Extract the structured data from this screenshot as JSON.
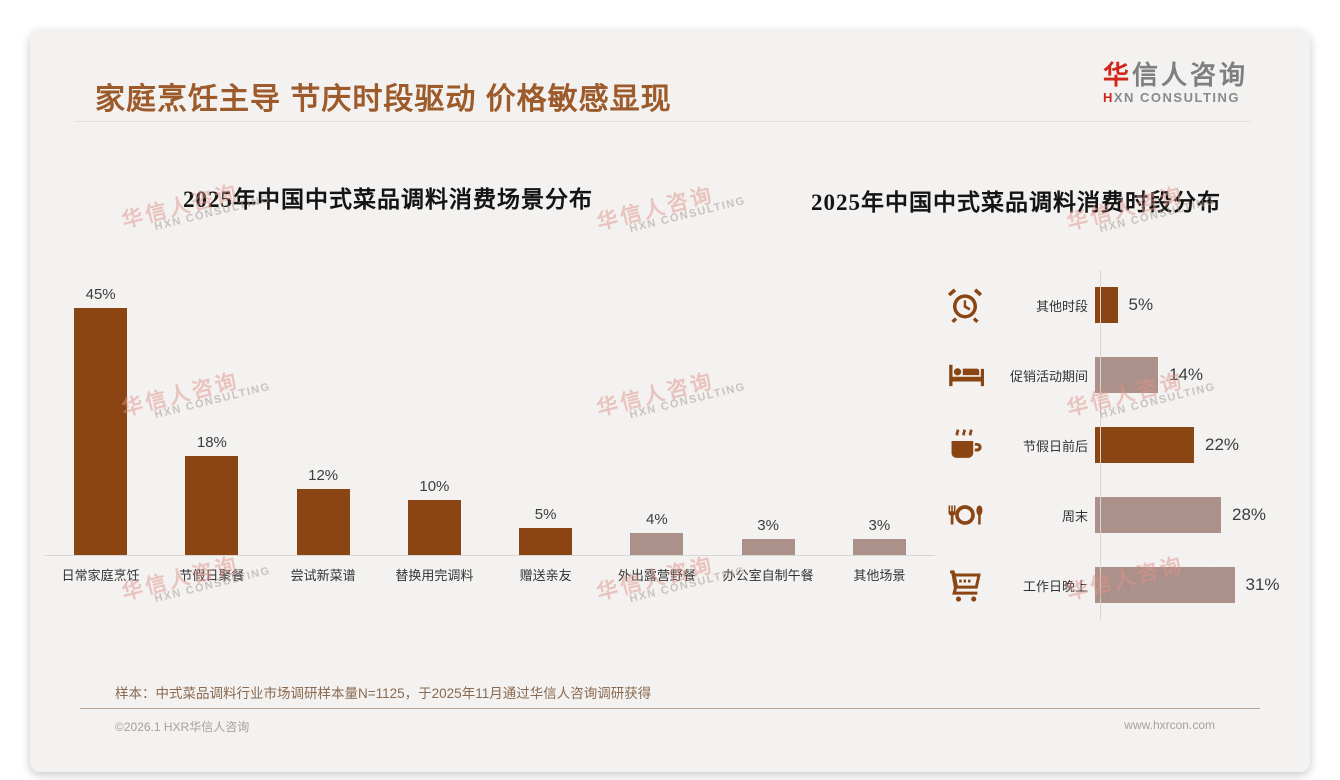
{
  "page_title": "家庭烹饪主导 节庆时段驱动 价格敏感显现",
  "logo": {
    "zh_accent": "华",
    "zh_rest": "信人咨询",
    "en_accent": "H",
    "en_rest": "XN CONSULTING"
  },
  "watermark": {
    "zh": "华信人咨询",
    "en": "HXN CONSULTING"
  },
  "colors": {
    "dark_bar": "#8A4513",
    "light_bar": "#AB9189",
    "title_brown": "#9D5B2C",
    "logo_red": "#D2261B",
    "icon_brown": "#8A4513"
  },
  "chart_data": [
    {
      "type": "bar",
      "title": "2025年中国中式菜品调料消费场景分布",
      "categories": [
        "日常家庭烹饪",
        "节假日聚餐",
        "尝试新菜谱",
        "替换用完调料",
        "赠送亲友",
        "外出露营野餐",
        "办公室自制午餐",
        "其他场景"
      ],
      "values": [
        45,
        18,
        12,
        10,
        5,
        4,
        3,
        3
      ],
      "unit": "%",
      "bar_colors": [
        "dark",
        "dark",
        "dark",
        "dark",
        "dark",
        "light",
        "light",
        "light"
      ],
      "ylim": [
        0,
        50
      ],
      "grid": false,
      "value_labels": "above bars"
    },
    {
      "type": "bar-horizontal",
      "title": "2025年中国中式菜品调料消费时段分布",
      "categories": [
        "其他时段",
        "促销活动期间",
        "节假日前后",
        "周末",
        "工作日晚上"
      ],
      "values": [
        5,
        14,
        22,
        28,
        31
      ],
      "unit": "%",
      "bar_colors": [
        "dark",
        "light",
        "dark",
        "light",
        "light"
      ],
      "icons": [
        "alarm-clock",
        "bed",
        "coffee-cup",
        "restaurant-plate",
        "shopping-cart"
      ],
      "xlim": [
        0,
        35
      ],
      "grid": false,
      "value_labels": "right of bars"
    }
  ],
  "footer": {
    "sample_note": "样本：中式菜品调料行业市场调研样本量N=1125，于2025年11月通过华信人咨询调研获得",
    "copyright": "©2026.1 HXR华信人咨询",
    "website": "www.hxrcon.com"
  }
}
